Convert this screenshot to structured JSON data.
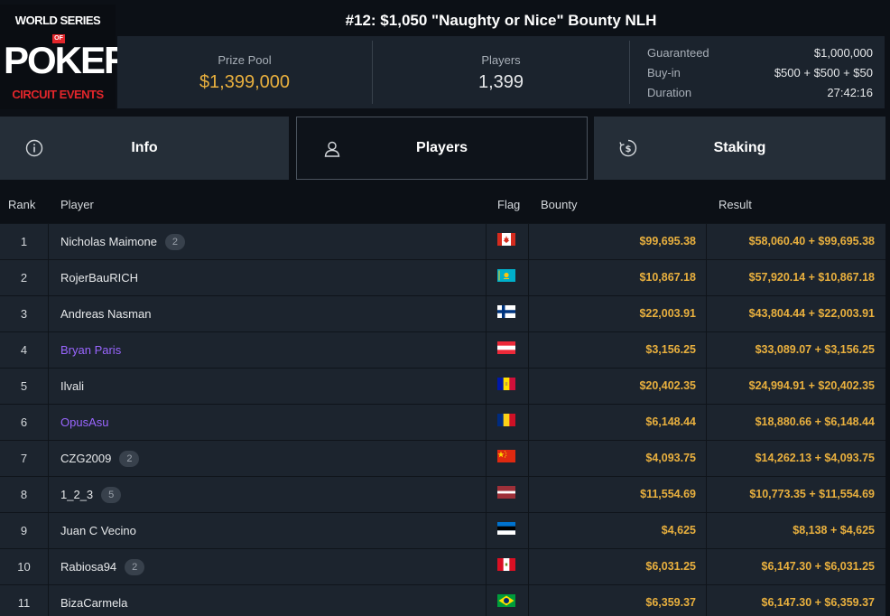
{
  "logo": {
    "line1_a": "WORLD SERIES",
    "line_of": "OF",
    "line2": "POKER",
    "line3": "CIRCUIT EVENTS"
  },
  "title": "#12: $1,050 \"Naughty or Nice\" Bounty NLH",
  "stats": {
    "prize_pool_label": "Prize Pool",
    "prize_pool_value": "$1,399,000",
    "players_label": "Players",
    "players_value": "1,399"
  },
  "details": [
    {
      "label": "Guaranteed",
      "value": "$1,000,000"
    },
    {
      "label": "Buy-in",
      "value": "$500 + $500 + $50"
    },
    {
      "label": "Duration",
      "value": "27:42:16"
    }
  ],
  "tabs": [
    {
      "label": "Info",
      "icon": "info-icon"
    },
    {
      "label": "Players",
      "icon": "user-icon",
      "active": true
    },
    {
      "label": "Staking",
      "icon": "staking-icon"
    }
  ],
  "table": {
    "headers": {
      "rank": "Rank",
      "player": "Player",
      "flag": "Flag",
      "bounty": "Bounty",
      "result": "Result"
    },
    "rows": [
      {
        "rank": "1",
        "player": "Nicholas Maimone",
        "badge": "2",
        "flag": "ca",
        "bounty": "$99,695.38",
        "result": "$58,060.40 + $99,695.38"
      },
      {
        "rank": "2",
        "player": "RojerBauRICH",
        "badge": "",
        "flag": "kz",
        "bounty": "$10,867.18",
        "result": "$57,920.14 + $10,867.18"
      },
      {
        "rank": "3",
        "player": "Andreas Nasman",
        "badge": "",
        "flag": "fi",
        "bounty": "$22,003.91",
        "result": "$43,804.44 + $22,003.91"
      },
      {
        "rank": "4",
        "player": "Bryan Paris",
        "badge": "",
        "flag": "at",
        "bounty": "$3,156.25",
        "result": "$33,089.07 + $3,156.25",
        "highlight": true
      },
      {
        "rank": "5",
        "player": "Ilvali",
        "badge": "",
        "flag": "ad",
        "bounty": "$20,402.35",
        "result": "$24,994.91 + $20,402.35"
      },
      {
        "rank": "6",
        "player": "OpusAsu",
        "badge": "",
        "flag": "ro",
        "bounty": "$6,148.44",
        "result": "$18,880.66 + $6,148.44",
        "highlight": true
      },
      {
        "rank": "7",
        "player": "CZG2009",
        "badge": "2",
        "flag": "cn",
        "bounty": "$4,093.75",
        "result": "$14,262.13 + $4,093.75"
      },
      {
        "rank": "8",
        "player": "1_2_3",
        "badge": "5",
        "flag": "lv",
        "bounty": "$11,554.69",
        "result": "$10,773.35 + $11,554.69"
      },
      {
        "rank": "9",
        "player": "Juan C Vecino",
        "badge": "",
        "flag": "ee",
        "bounty": "$4,625",
        "result": "$8,138 + $4,625"
      },
      {
        "rank": "10",
        "player": "Rabiosa94",
        "badge": "2",
        "flag": "pe",
        "bounty": "$6,031.25",
        "result": "$6,147.30 + $6,031.25"
      },
      {
        "rank": "11",
        "player": "BizaCarmela",
        "badge": "",
        "flag": "br",
        "bounty": "$6,359.37",
        "result": "$6,147.30 + $6,359.37"
      }
    ]
  },
  "colors": {
    "accent_gold": "#e9b03e",
    "highlight_purple": "#9a66ff",
    "panel": "#1b232d"
  }
}
